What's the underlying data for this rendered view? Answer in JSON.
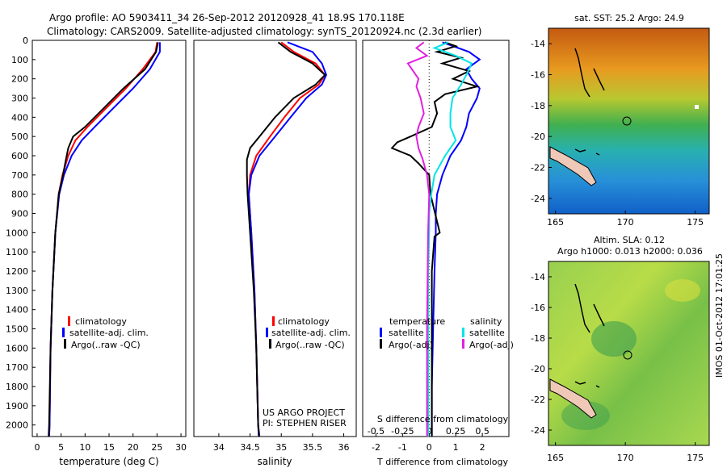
{
  "header": {
    "title_line1": "Argo profile: AO 5903411_34 26-Sep-2012 20120928_41 18.9S 170.118E",
    "title_line2": "Climatology: CARS2009. Satellite-adjusted climatology: synTS_20120924.nc (2.3d earlier)"
  },
  "colors": {
    "climatology": "#ff0000",
    "satellite": "#0000ff",
    "argo": "#000000",
    "sal_satellite": "#00e5e5",
    "sal_argo": "#e020e0"
  },
  "depth_axis": {
    "ticks": [
      "0",
      "100",
      "200",
      "300",
      "400",
      "500",
      "600",
      "700",
      "800",
      "900",
      "1000",
      "1100",
      "1200",
      "1300",
      "1400",
      "1500",
      "1600",
      "1700",
      "1800",
      "1900",
      "2000"
    ],
    "ylim": [
      2060,
      0
    ]
  },
  "chart_data": [
    {
      "type": "line",
      "xlabel": "temperature (deg C)",
      "xlim": [
        -1,
        31
      ],
      "xticks": [
        "0",
        "5",
        "10",
        "15",
        "20",
        "25",
        "30"
      ],
      "legend": [
        "climatology",
        "satellite-adj. clim.",
        "Argo(..raw -QC)"
      ],
      "legend_position": "lower-center",
      "series": [
        {
          "name": "climatology",
          "color": "red",
          "depth": [
            10,
            60,
            150,
            250,
            350,
            450,
            520,
            600,
            700,
            800,
            1000,
            1300,
            1600,
            2000,
            2060
          ],
          "values": [
            25,
            24.7,
            22,
            18.5,
            14.5,
            10.5,
            8,
            6.5,
            5.3,
            4.5,
            3.8,
            3.2,
            2.8,
            2.6,
            2.5
          ]
        },
        {
          "name": "satellite-adj. clim.",
          "color": "blue",
          "depth": [
            10,
            60,
            150,
            250,
            350,
            450,
            520,
            600,
            700,
            800,
            1000,
            1300,
            1600,
            2000,
            2060
          ],
          "values": [
            25.6,
            25.6,
            23.5,
            20,
            16,
            12,
            9.3,
            7.2,
            5.6,
            4.6,
            3.8,
            3.2,
            2.8,
            2.6,
            2.5
          ]
        },
        {
          "name": "Argo(..raw -QC)",
          "color": "black",
          "depth": [
            10,
            60,
            150,
            250,
            350,
            450,
            500,
            560,
            620,
            700,
            800,
            1000,
            1300,
            1600,
            2000,
            2060
          ],
          "values": [
            25.2,
            24.8,
            22.5,
            18,
            14,
            10,
            7.5,
            6.5,
            6,
            5.4,
            4.5,
            3.8,
            3.2,
            2.8,
            2.5,
            2.4
          ]
        }
      ]
    },
    {
      "type": "line",
      "xlabel": "salinity",
      "xlim": [
        33.6,
        36.2
      ],
      "xticks": [
        "34",
        "34.5",
        "35",
        "35.5",
        "36"
      ],
      "legend": [
        "climatology",
        "satellite-adj. clim.",
        "Argo(..raw -QC)"
      ],
      "legend_position": "lower-center",
      "annotations": [
        "US ARGO PROJECT",
        "PI: STEPHEN RISER"
      ],
      "series": [
        {
          "name": "climatology",
          "color": "red",
          "depth": [
            10,
            60,
            120,
            180,
            230,
            300,
            400,
            500,
            600,
            700,
            800,
            1000,
            1300,
            1600,
            2000,
            2060
          ],
          "values": [
            35.0,
            35.2,
            35.55,
            35.7,
            35.6,
            35.3,
            35.05,
            34.82,
            34.6,
            34.5,
            34.48,
            34.52,
            34.57,
            34.6,
            34.63,
            34.65
          ]
        },
        {
          "name": "satellite-adj. clim.",
          "color": "blue",
          "depth": [
            10,
            60,
            120,
            180,
            230,
            300,
            400,
            500,
            600,
            700,
            800,
            1000,
            1300,
            1600,
            2000,
            2060
          ],
          "values": [
            35.1,
            35.5,
            35.65,
            35.72,
            35.65,
            35.4,
            35.15,
            34.9,
            34.65,
            34.52,
            34.48,
            34.52,
            34.57,
            34.6,
            34.63,
            34.65
          ]
        },
        {
          "name": "Argo(..raw -QC)",
          "color": "black",
          "depth": [
            10,
            60,
            120,
            180,
            230,
            300,
            400,
            500,
            560,
            620,
            700,
            800,
            1000,
            1300,
            1600,
            2000,
            2060
          ],
          "values": [
            34.95,
            35.15,
            35.5,
            35.7,
            35.55,
            35.2,
            34.9,
            34.65,
            34.5,
            34.45,
            34.45,
            34.46,
            34.5,
            34.56,
            34.6,
            34.63,
            34.64
          ]
        }
      ]
    },
    {
      "type": "line",
      "xlabel": "T difference from climatology",
      "xlim": [
        -2.5,
        3.0
      ],
      "xticks": [
        "-2",
        "-1",
        "0",
        "1",
        "2"
      ],
      "top_axis_label": "S difference from climatology",
      "top_ticks": [
        "-0.5",
        "-0.25",
        "0",
        "0.25",
        "0.5"
      ],
      "legend_groups": [
        {
          "heading": "temperature",
          "items": [
            "satellite",
            "Argo(-adj)"
          ]
        },
        {
          "heading": "salinity",
          "items": [
            "satellite",
            "Argo(-adj)"
          ]
        }
      ],
      "series": [
        {
          "name": "temperature satellite",
          "color": "blue",
          "depth": [
            10,
            30,
            60,
            100,
            150,
            200,
            250,
            300,
            380,
            450,
            520,
            600,
            700,
            800,
            900,
            1000,
            1200,
            1500,
            1800,
            2060
          ],
          "values": [
            0.5,
            0.9,
            1.5,
            1.9,
            1.4,
            1.6,
            1.9,
            1.8,
            1.5,
            1.4,
            1.2,
            0.8,
            0.5,
            0.3,
            0.25,
            0.25,
            0.2,
            0.15,
            0.1,
            0.1
          ]
        },
        {
          "name": "temperature Argo(-adj)",
          "color": "black",
          "depth": [
            10,
            30,
            60,
            90,
            120,
            160,
            200,
            240,
            280,
            320,
            380,
            450,
            500,
            530,
            560,
            600,
            640,
            700,
            800,
            1000,
            1020,
            1200,
            1500,
            1800,
            2060
          ],
          "values": [
            0.6,
            1.0,
            0.3,
            1.2,
            0.5,
            1.5,
            0.9,
            1.8,
            0.6,
            0.2,
            0.3,
            0.1,
            -0.7,
            -1.2,
            -1.4,
            -0.7,
            -0.4,
            0.0,
            0.05,
            0.4,
            0.2,
            0.1,
            0.1,
            0.1,
            0.1
          ]
        },
        {
          "name": "salinity satellite",
          "color": "cyan",
          "depth": [
            10,
            40,
            80,
            120,
            180,
            230,
            300,
            380,
            450,
            520,
            600,
            700,
            800,
            900,
            1000,
            1200,
            1500,
            1800,
            2060
          ],
          "values": [
            0.18,
            0.05,
            0.25,
            0.4,
            0.35,
            0.3,
            0.22,
            0.2,
            0.2,
            0.25,
            0.15,
            0.05,
            0.02,
            0.0,
            0.0,
            -0.01,
            -0.01,
            -0.01,
            -0.01
          ]
        },
        {
          "name": "salinity Argo(-adj)",
          "color": "magenta",
          "depth": [
            10,
            40,
            80,
            120,
            160,
            200,
            240,
            300,
            380,
            450,
            500,
            560,
            620,
            700,
            800,
            1000,
            1500,
            2060
          ],
          "values": [
            -0.05,
            -0.12,
            -0.02,
            -0.2,
            -0.15,
            -0.1,
            -0.12,
            -0.08,
            -0.05,
            -0.1,
            -0.12,
            -0.1,
            -0.06,
            -0.02,
            0.0,
            -0.01,
            -0.02,
            -0.02
          ]
        }
      ]
    },
    {
      "type": "heatmap",
      "title": "sat. SST: 25.2 Argo: 24.9",
      "xticks": [
        "165",
        "170",
        "175"
      ],
      "yticks": [
        "-14",
        "-16",
        "-18",
        "-20",
        "-22",
        "-24"
      ],
      "xlim": [
        164.5,
        176
      ],
      "ylim": [
        -25,
        -13
      ]
    },
    {
      "type": "heatmap",
      "title_line1": "Altim. SLA: 0.12",
      "title_line2": "Argo h1000: 0.013 h2000: 0.036",
      "xticks": [
        "165",
        "170",
        "175"
      ],
      "yticks": [
        "-14",
        "-16",
        "-18",
        "-20",
        "-22",
        "-24"
      ],
      "xlim": [
        164.5,
        176
      ],
      "ylim": [
        -25,
        -13
      ]
    }
  ],
  "footer": {
    "imos_stamp": "IMOS 01-Oct-2012 17:01:25"
  }
}
